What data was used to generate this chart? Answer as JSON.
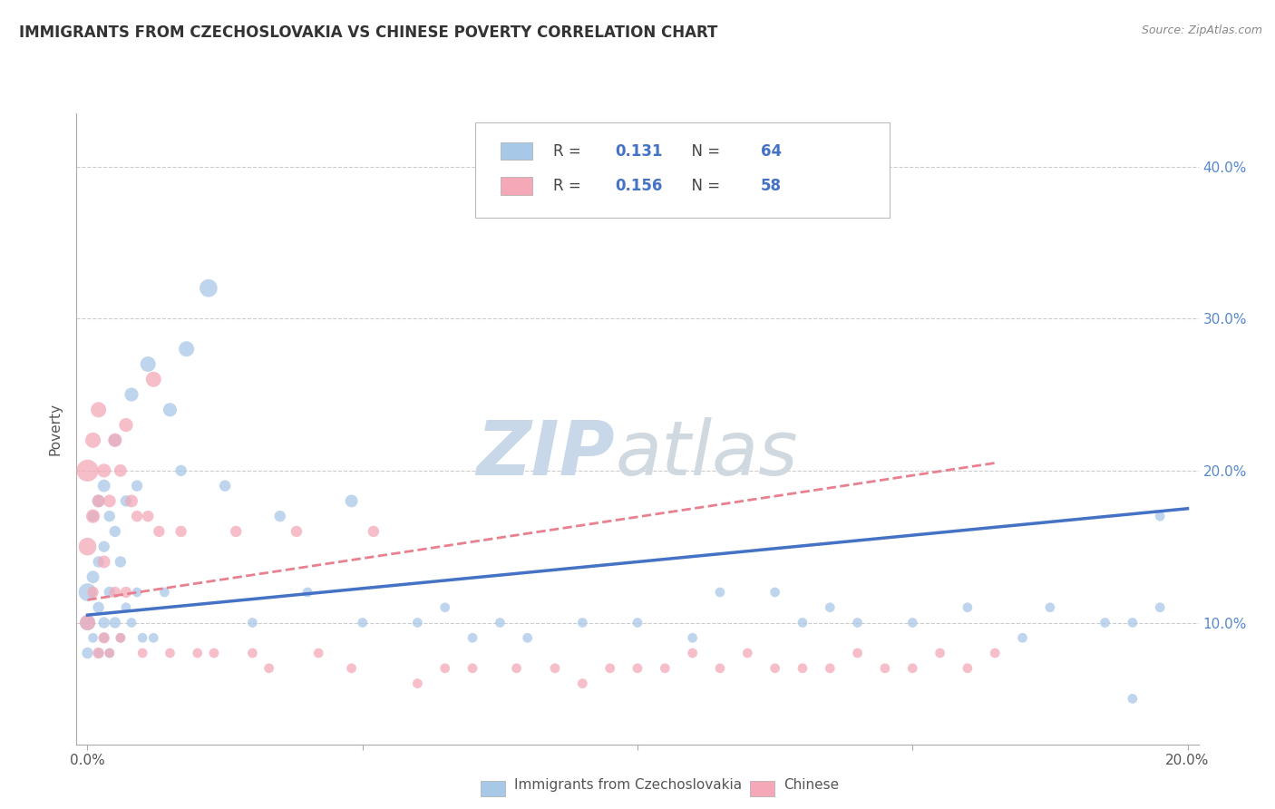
{
  "title": "IMMIGRANTS FROM CZECHOSLOVAKIA VS CHINESE POVERTY CORRELATION CHART",
  "source": "Source: ZipAtlas.com",
  "ylabel": "Poverty",
  "ytick_vals": [
    0.1,
    0.2,
    0.3,
    0.4
  ],
  "ytick_labels": [
    "10.0%",
    "20.0%",
    "30.0%",
    "40.0%"
  ],
  "xlim": [
    -0.002,
    0.202
  ],
  "ylim": [
    0.02,
    0.435
  ],
  "legend1_R": "0.131",
  "legend1_N": "64",
  "legend2_R": "0.156",
  "legend2_N": "58",
  "blue_color": "#A8C8E8",
  "pink_color": "#F4A8B8",
  "blue_line_color": "#4472C4",
  "pink_line_color": "#E88090",
  "blue_scatter_x": [
    0.0,
    0.0,
    0.0,
    0.001,
    0.001,
    0.001,
    0.002,
    0.002,
    0.002,
    0.002,
    0.003,
    0.003,
    0.003,
    0.003,
    0.004,
    0.004,
    0.004,
    0.005,
    0.005,
    0.005,
    0.006,
    0.006,
    0.007,
    0.007,
    0.008,
    0.008,
    0.009,
    0.009,
    0.01,
    0.011,
    0.012,
    0.014,
    0.015,
    0.017,
    0.018,
    0.022,
    0.025,
    0.03,
    0.035,
    0.04,
    0.048,
    0.05,
    0.06,
    0.065,
    0.07,
    0.075,
    0.08,
    0.09,
    0.1,
    0.11,
    0.115,
    0.125,
    0.13,
    0.135,
    0.14,
    0.15,
    0.16,
    0.17,
    0.175,
    0.185,
    0.19,
    0.195,
    0.195,
    0.19
  ],
  "blue_scatter_y": [
    0.12,
    0.1,
    0.08,
    0.13,
    0.17,
    0.09,
    0.11,
    0.14,
    0.18,
    0.08,
    0.1,
    0.15,
    0.19,
    0.09,
    0.12,
    0.17,
    0.08,
    0.1,
    0.16,
    0.22,
    0.09,
    0.14,
    0.11,
    0.18,
    0.1,
    0.25,
    0.12,
    0.19,
    0.09,
    0.27,
    0.09,
    0.12,
    0.24,
    0.2,
    0.28,
    0.32,
    0.19,
    0.1,
    0.17,
    0.12,
    0.18,
    0.1,
    0.1,
    0.11,
    0.09,
    0.1,
    0.09,
    0.1,
    0.1,
    0.09,
    0.12,
    0.12,
    0.1,
    0.11,
    0.1,
    0.1,
    0.11,
    0.09,
    0.11,
    0.1,
    0.1,
    0.11,
    0.17,
    0.05
  ],
  "blue_scatter_size": [
    200,
    150,
    80,
    100,
    80,
    60,
    80,
    80,
    100,
    60,
    80,
    80,
    100,
    60,
    80,
    80,
    60,
    80,
    80,
    100,
    60,
    80,
    60,
    80,
    60,
    120,
    60,
    80,
    60,
    150,
    60,
    60,
    120,
    80,
    150,
    200,
    80,
    60,
    80,
    60,
    100,
    60,
    60,
    60,
    60,
    60,
    60,
    60,
    60,
    60,
    60,
    60,
    60,
    60,
    60,
    60,
    60,
    60,
    60,
    60,
    60,
    60,
    60,
    60
  ],
  "pink_scatter_x": [
    0.0,
    0.0,
    0.0,
    0.001,
    0.001,
    0.001,
    0.002,
    0.002,
    0.002,
    0.003,
    0.003,
    0.003,
    0.004,
    0.004,
    0.005,
    0.005,
    0.006,
    0.006,
    0.007,
    0.007,
    0.008,
    0.009,
    0.01,
    0.011,
    0.012,
    0.013,
    0.015,
    0.017,
    0.02,
    0.023,
    0.027,
    0.03,
    0.033,
    0.038,
    0.042,
    0.048,
    0.052,
    0.06,
    0.065,
    0.07,
    0.078,
    0.085,
    0.09,
    0.095,
    0.1,
    0.105,
    0.11,
    0.115,
    0.12,
    0.125,
    0.13,
    0.135,
    0.14,
    0.145,
    0.15,
    0.155,
    0.16,
    0.165
  ],
  "pink_scatter_y": [
    0.2,
    0.15,
    0.1,
    0.22,
    0.17,
    0.12,
    0.24,
    0.18,
    0.08,
    0.2,
    0.14,
    0.09,
    0.18,
    0.08,
    0.22,
    0.12,
    0.2,
    0.09,
    0.23,
    0.12,
    0.18,
    0.17,
    0.08,
    0.17,
    0.26,
    0.16,
    0.08,
    0.16,
    0.08,
    0.08,
    0.16,
    0.08,
    0.07,
    0.16,
    0.08,
    0.07,
    0.16,
    0.06,
    0.07,
    0.07,
    0.07,
    0.07,
    0.06,
    0.07,
    0.07,
    0.07,
    0.08,
    0.07,
    0.08,
    0.07,
    0.07,
    0.07,
    0.08,
    0.07,
    0.07,
    0.08,
    0.07,
    0.08
  ],
  "pink_scatter_size": [
    300,
    200,
    150,
    150,
    120,
    80,
    150,
    100,
    80,
    120,
    100,
    80,
    100,
    60,
    120,
    80,
    100,
    60,
    120,
    80,
    100,
    80,
    60,
    80,
    150,
    80,
    60,
    80,
    60,
    60,
    80,
    60,
    60,
    80,
    60,
    60,
    80,
    60,
    60,
    60,
    60,
    60,
    60,
    60,
    60,
    60,
    60,
    60,
    60,
    60,
    60,
    60,
    60,
    60,
    60,
    60,
    60,
    60
  ],
  "blue_trend_x": [
    0.0,
    0.2
  ],
  "blue_trend_y": [
    0.105,
    0.175
  ],
  "pink_trend_x": [
    0.0,
    0.165
  ],
  "pink_trend_y": [
    0.115,
    0.205
  ],
  "watermark_text": "ZIPatlas",
  "watermark_fontsize": 60
}
